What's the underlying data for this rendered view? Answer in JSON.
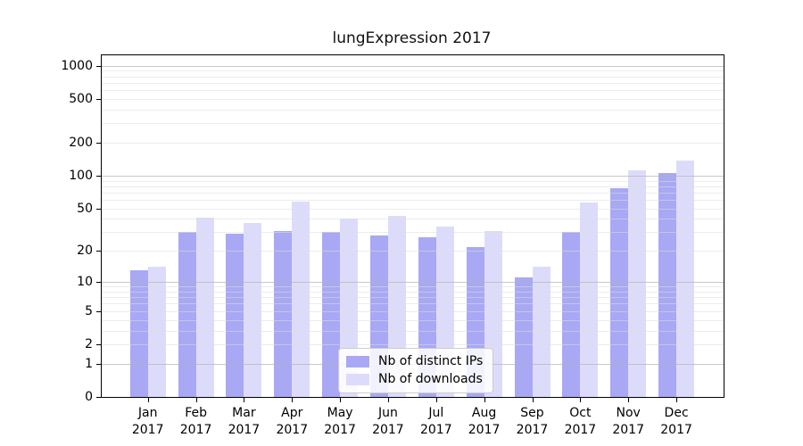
{
  "chart_data": {
    "type": "bar",
    "title": "lungExpression 2017",
    "categories": [
      "Jan",
      "Feb",
      "Mar",
      "Apr",
      "May",
      "Jun",
      "Jul",
      "Aug",
      "Sep",
      "Oct",
      "Nov",
      "Dec"
    ],
    "x_year": "2017",
    "series": [
      {
        "name": "Nb of distinct IPs",
        "color": "#a8a8f4",
        "values": [
          13,
          30,
          29,
          31,
          30,
          28,
          27,
          22,
          11,
          30,
          77,
          106
        ]
      },
      {
        "name": "Nb of downloads",
        "color": "#dcdcfa",
        "values": [
          14,
          41,
          37,
          58,
          40,
          43,
          34,
          31,
          14,
          57,
          112,
          138
        ]
      }
    ],
    "xlabel": "",
    "ylabel": "",
    "y_ticks": [
      0,
      1,
      2,
      5,
      10,
      20,
      50,
      100,
      200,
      500,
      1000
    ],
    "y_scale": "log10(1+value)",
    "ylim": [
      0,
      1240
    ],
    "grid": true,
    "grid_over_bars": true,
    "legend_position": "lower center"
  },
  "colors": {
    "bar_distinct_ips": "#a8a8f4",
    "bar_downloads": "#dcdcfa",
    "grid_major": "rgba(178,178,178,0.70)",
    "grid_minor": "rgba(221,221,221,0.55)",
    "axis": "#000000",
    "background": "#ffffff",
    "legend_border": "#cccccc"
  }
}
